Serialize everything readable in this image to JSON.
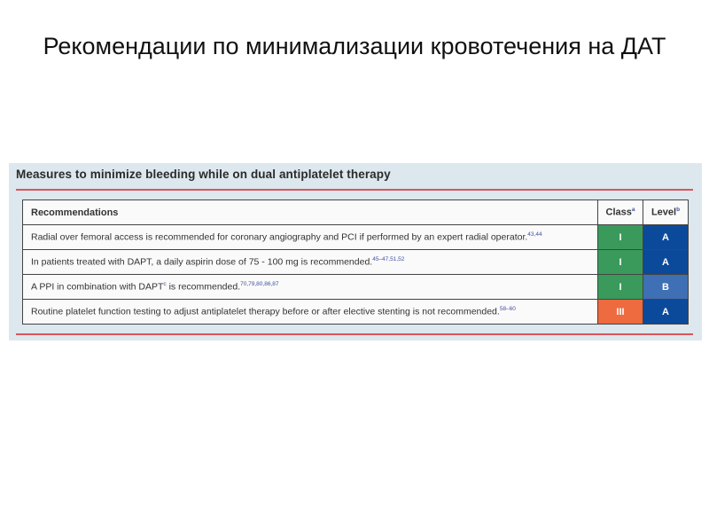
{
  "slide": {
    "title": "Рекомендации по минимализации кровотечения на ДАТ"
  },
  "table": {
    "title": "Measures to minimize bleeding while on dual antiplatelet therapy",
    "headers": {
      "recommendations": "Recommendations",
      "class": "Class",
      "class_sup": "a",
      "level": "Level",
      "level_sup": "b"
    },
    "rows": [
      {
        "text": "Radial over femoral access is recommended for coronary angiography and PCI if performed by an expert radial operator.",
        "refs": "43,44",
        "class": "I",
        "level": "A",
        "class_color": "#3a9a5b",
        "level_color": "#0b4a9a"
      },
      {
        "text": "In patients treated with DAPT, a daily aspirin dose of 75 - 100 mg is recommended.",
        "refs": "45–47,51,52",
        "class": "I",
        "level": "A",
        "class_color": "#3a9a5b",
        "level_color": "#0b4a9a"
      },
      {
        "text_before": "A PPI in combination with DAPT",
        "text_sup": "c",
        "text": " is recommended.",
        "refs": "70,79,80,86,87",
        "class": "I",
        "level": "B",
        "class_color": "#3a9a5b",
        "level_color": "#3f6fb5"
      },
      {
        "text": "Routine platelet function testing to adjust antiplatelet therapy before or after elective stenting is not recommended.",
        "refs": "58–60",
        "class": "III",
        "level": "A",
        "class_color": "#ee6a3f",
        "level_color": "#0b4a9a"
      }
    ]
  }
}
